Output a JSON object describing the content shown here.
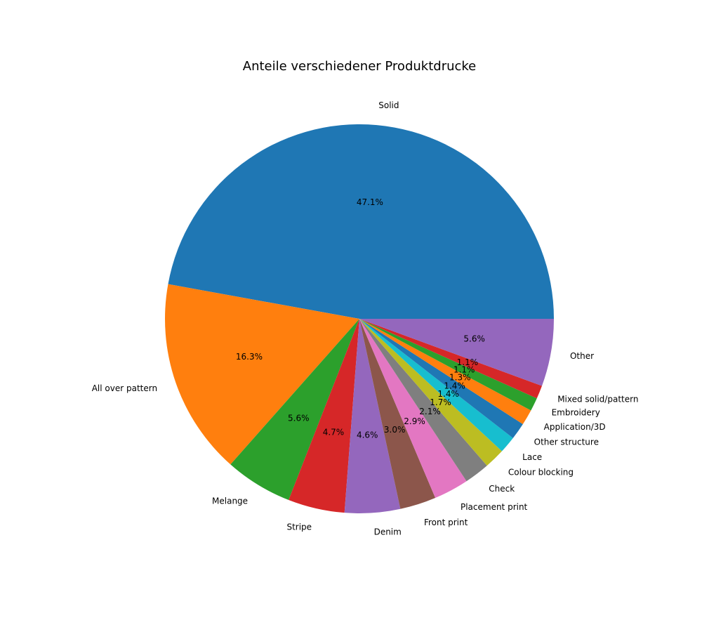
{
  "chart_data": {
    "type": "pie",
    "title": "Anteile verschiedener Produktdrucke",
    "start_angle_deg": 0,
    "direction": "counterclockwise",
    "slices": [
      {
        "label": "Solid",
        "value": 47.1,
        "pct_label": "47.1%",
        "color": "#1f77b4"
      },
      {
        "label": "All over pattern",
        "value": 16.3,
        "pct_label": "16.3%",
        "color": "#ff7f0e"
      },
      {
        "label": "Melange",
        "value": 5.6,
        "pct_label": "5.6%",
        "color": "#2ca02c"
      },
      {
        "label": "Stripe",
        "value": 4.7,
        "pct_label": "4.7%",
        "color": "#d62728"
      },
      {
        "label": "Denim",
        "value": 4.6,
        "pct_label": "4.6%",
        "color": "#9467bd"
      },
      {
        "label": "Front print",
        "value": 3.0,
        "pct_label": "3.0%",
        "color": "#8c564b"
      },
      {
        "label": "Placement print",
        "value": 2.9,
        "pct_label": "2.9%",
        "color": "#e377c2"
      },
      {
        "label": "Check",
        "value": 2.1,
        "pct_label": "2.1%",
        "color": "#7f7f7f"
      },
      {
        "label": "Colour blocking",
        "value": 1.7,
        "pct_label": "1.7%",
        "color": "#bcbd22"
      },
      {
        "label": "Lace",
        "value": 1.4,
        "pct_label": "1.4%",
        "color": "#17becf"
      },
      {
        "label": "Other structure",
        "value": 1.4,
        "pct_label": "1.4%",
        "color": "#1f77b4"
      },
      {
        "label": "Application/3D",
        "value": 1.3,
        "pct_label": "1.3%",
        "color": "#ff7f0e"
      },
      {
        "label": "Embroidery",
        "value": 1.1,
        "pct_label": "1.1%",
        "color": "#2ca02c"
      },
      {
        "label": "Mixed solid/pattern",
        "value": 1.1,
        "pct_label": "1.1%",
        "color": "#d62728"
      },
      {
        "label": "Other",
        "value": 5.6,
        "pct_label": "5.6%",
        "color": "#9467bd"
      }
    ]
  }
}
